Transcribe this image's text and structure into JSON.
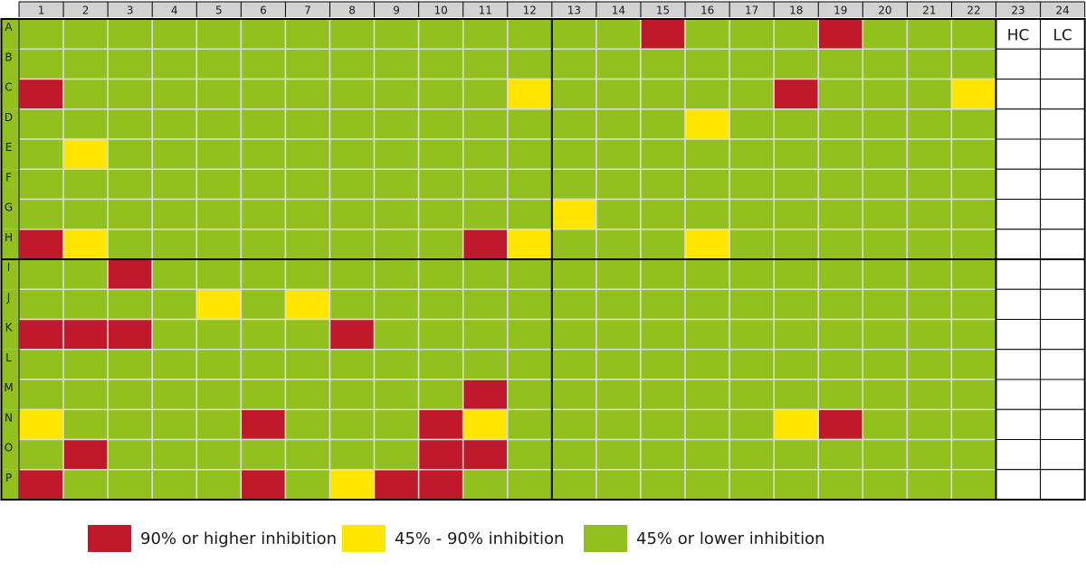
{
  "chart_data": {
    "type": "heatmap",
    "columns": [
      "1",
      "2",
      "3",
      "4",
      "5",
      "6",
      "7",
      "8",
      "9",
      "10",
      "11",
      "12",
      "13",
      "14",
      "15",
      "16",
      "17",
      "18",
      "19",
      "20",
      "21",
      "22",
      "23",
      "24"
    ],
    "rows": [
      "A",
      "B",
      "C",
      "D",
      "E",
      "F",
      "G",
      "H",
      "I",
      "J",
      "K",
      "L",
      "M",
      "N",
      "O",
      "P"
    ],
    "default_category": "low",
    "cells": [
      {
        "row": "A",
        "col": "15",
        "category": "high"
      },
      {
        "row": "A",
        "col": "19",
        "category": "high"
      },
      {
        "row": "C",
        "col": "1",
        "category": "high"
      },
      {
        "row": "C",
        "col": "12",
        "category": "mid"
      },
      {
        "row": "C",
        "col": "18",
        "category": "high"
      },
      {
        "row": "C",
        "col": "22",
        "category": "mid"
      },
      {
        "row": "D",
        "col": "16",
        "category": "mid"
      },
      {
        "row": "E",
        "col": "2",
        "category": "mid"
      },
      {
        "row": "G",
        "col": "13",
        "category": "mid"
      },
      {
        "row": "H",
        "col": "1",
        "category": "high"
      },
      {
        "row": "H",
        "col": "2",
        "category": "mid"
      },
      {
        "row": "H",
        "col": "11",
        "category": "high"
      },
      {
        "row": "H",
        "col": "12",
        "category": "mid"
      },
      {
        "row": "H",
        "col": "16",
        "category": "mid"
      },
      {
        "row": "I",
        "col": "3",
        "category": "high"
      },
      {
        "row": "J",
        "col": "5",
        "category": "mid"
      },
      {
        "row": "J",
        "col": "7",
        "category": "mid"
      },
      {
        "row": "K",
        "col": "1",
        "category": "high"
      },
      {
        "row": "K",
        "col": "2",
        "category": "high"
      },
      {
        "row": "K",
        "col": "3",
        "category": "high"
      },
      {
        "row": "K",
        "col": "8",
        "category": "high"
      },
      {
        "row": "M",
        "col": "11",
        "category": "high"
      },
      {
        "row": "N",
        "col": "1",
        "category": "mid"
      },
      {
        "row": "N",
        "col": "6",
        "category": "high"
      },
      {
        "row": "N",
        "col": "10",
        "category": "high"
      },
      {
        "row": "N",
        "col": "11",
        "category": "mid"
      },
      {
        "row": "N",
        "col": "18",
        "category": "mid"
      },
      {
        "row": "N",
        "col": "19",
        "category": "high"
      },
      {
        "row": "O",
        "col": "2",
        "category": "high"
      },
      {
        "row": "O",
        "col": "10",
        "category": "high"
      },
      {
        "row": "O",
        "col": "11",
        "category": "high"
      },
      {
        "row": "P",
        "col": "1",
        "category": "high"
      },
      {
        "row": "P",
        "col": "6",
        "category": "high"
      },
      {
        "row": "P",
        "col": "8",
        "category": "mid"
      },
      {
        "row": "P",
        "col": "9",
        "category": "high"
      },
      {
        "row": "P",
        "col": "10",
        "category": "high"
      }
    ],
    "control_columns": [
      {
        "col": "23",
        "label": "HC"
      },
      {
        "col": "24",
        "label": "LC"
      }
    ],
    "legend": [
      {
        "key": "high",
        "label": "90% or higher inhibition",
        "color": "#c0192c"
      },
      {
        "key": "mid",
        "label": "45% - 90% inhibition",
        "color": "#ffe600"
      },
      {
        "key": "low",
        "label": "45% or lower inhibition",
        "color": "#92c11f"
      }
    ],
    "legend_position": "bottom",
    "colors": {
      "header_bg": "#d2d2d2",
      "grid_line": "#dcdcdc",
      "border": "#000000",
      "control_bg": "#ffffff"
    },
    "title": "",
    "xlabel": "",
    "ylabel": ""
  }
}
